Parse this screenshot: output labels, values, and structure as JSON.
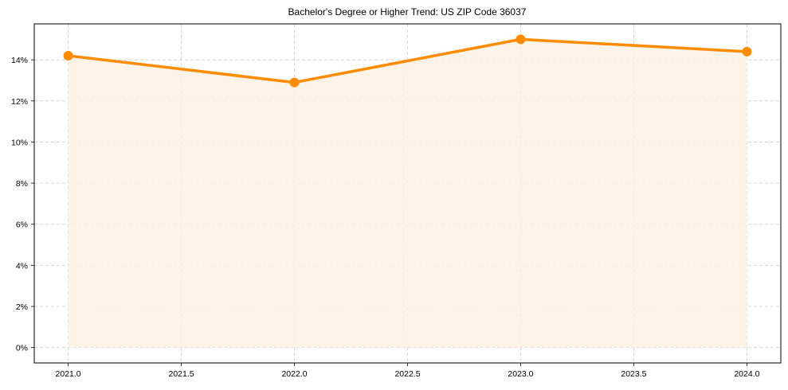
{
  "chart_data": {
    "type": "area",
    "title": "Bachelor's Degree or Higher Trend: US ZIP Code 36037",
    "xlabel": "",
    "ylabel": "",
    "x": [
      2021.0,
      2022.0,
      2023.0,
      2024.0
    ],
    "series": [
      {
        "name": "Bachelor's Degree or Higher",
        "values": [
          14.2,
          12.9,
          15.0,
          14.4
        ],
        "color": "#ff8c00",
        "fill": "#fdf1e4"
      }
    ],
    "x_ticks": [
      "2021.0",
      "2021.5",
      "2022.0",
      "2022.5",
      "2023.0",
      "2023.5",
      "2024.0"
    ],
    "y_ticks": [
      "0%",
      "2%",
      "4%",
      "6%",
      "8%",
      "10%",
      "12%",
      "14%"
    ],
    "xlim": [
      2020.85,
      2024.15
    ],
    "ylim": [
      -0.75,
      15.75
    ],
    "grid": true,
    "grid_style": "dashed",
    "legend": "none"
  }
}
